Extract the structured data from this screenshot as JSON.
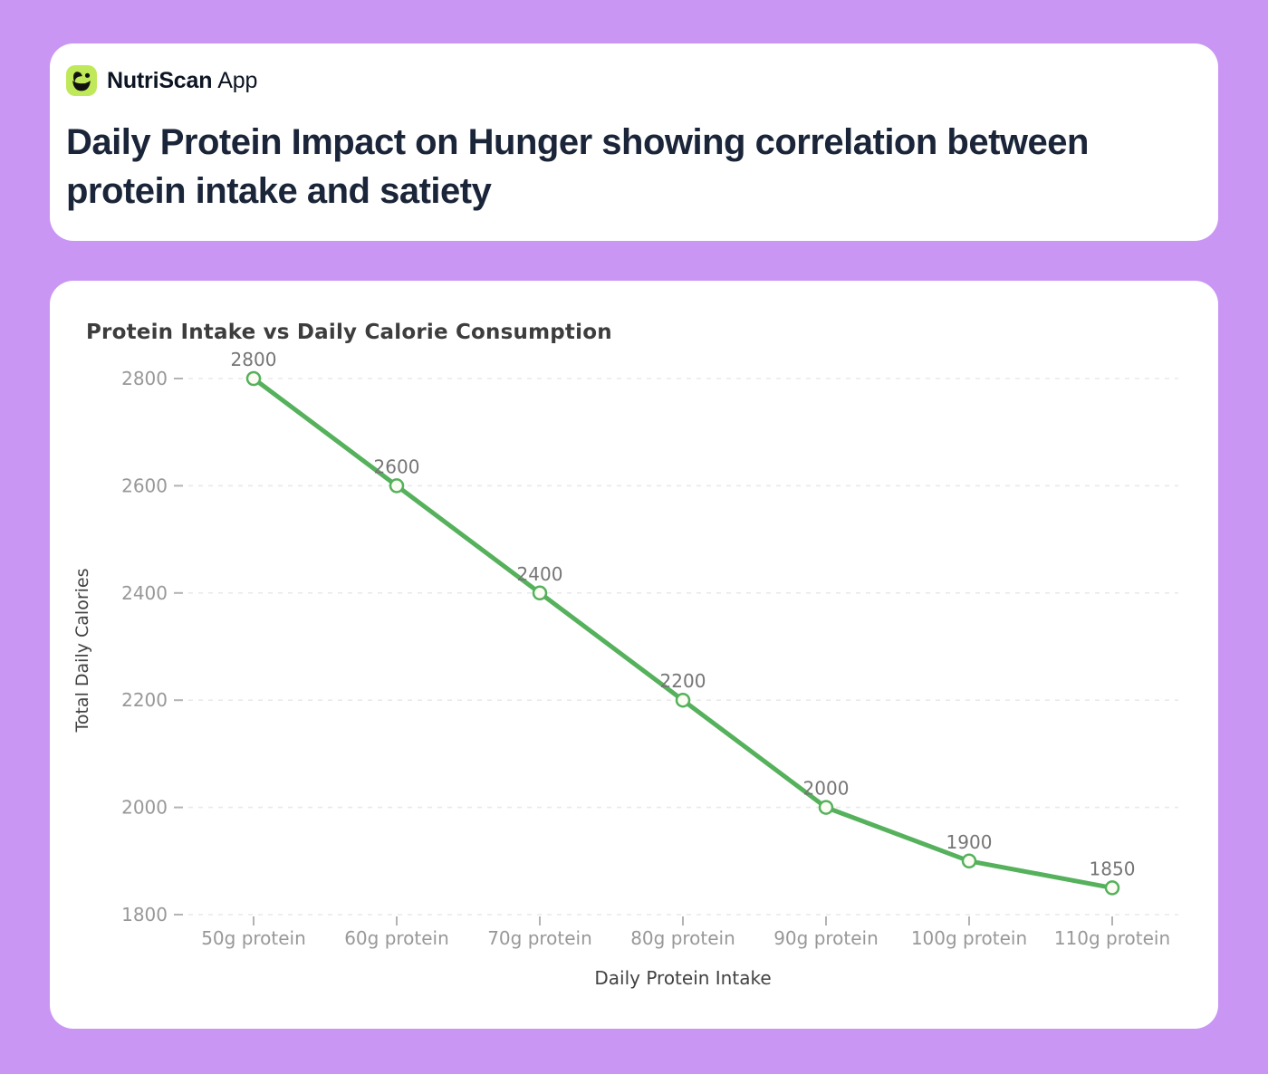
{
  "page": {
    "background_color": "#c996f4",
    "card_color": "#ffffff"
  },
  "header": {
    "logo_icon": "leaf-berry-icon",
    "logo_color": "#bfe85a",
    "brand_bold": "NutriScan",
    "brand_light": "App",
    "title": "Daily Protein Impact on Hunger showing correlation between protein intake and satiety"
  },
  "chart_data": {
    "type": "line",
    "title": "Protein Intake vs Daily Calorie Consumption",
    "categories": [
      "50g protein",
      "60g protein",
      "70g protein",
      "80g protein",
      "90g protein",
      "100g protein",
      "110g protein"
    ],
    "values": [
      2800,
      2600,
      2400,
      2200,
      2000,
      1900,
      1850
    ],
    "point_labels": [
      "2800",
      "2600",
      "2400",
      "2200",
      "2000",
      "1900",
      "1850"
    ],
    "xlabel": "Daily Protein Intake",
    "ylabel": "Total Daily Calories",
    "ylim": [
      1800,
      2800
    ],
    "yticks": [
      1800,
      2000,
      2200,
      2400,
      2600,
      2800
    ],
    "grid": "horizontal-dashed",
    "legend_position": "none",
    "colors": {
      "line": "#55b15b",
      "marker_fill": "#fbfdf3",
      "marker_stroke": "#55b15b",
      "gridline": "#e9e9e9",
      "tick_mark": "#b3b3b3",
      "tick_label": "#989898",
      "point_label": "#757575",
      "axis_title": "#424242"
    }
  }
}
